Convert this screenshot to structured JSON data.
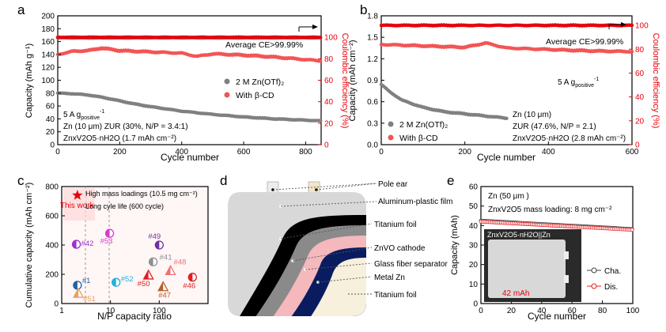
{
  "chart_data": [
    {
      "panel": "a",
      "type": "scatter",
      "title": "",
      "xlabel": "Cycle number",
      "ylabel": "Capacity (mAh g⁻¹)",
      "y2label": "Coulombic efficiency (%)",
      "xlim": [
        0,
        850
      ],
      "ylim": [
        0,
        200
      ],
      "y2lim": [
        0,
        120
      ],
      "xticks": [
        0,
        200,
        400,
        600,
        800
      ],
      "yticks": [
        0,
        20,
        40,
        60,
        80,
        100,
        120,
        140,
        160,
        180,
        200
      ],
      "y2ticks": [
        0,
        20,
        40,
        60,
        80,
        100
      ],
      "series": [
        {
          "name": "2 M Zn(OTf)2",
          "color": "#808080",
          "axis": "left",
          "x": [
            0,
            50,
            100,
            150,
            200,
            250,
            300,
            400,
            500,
            600,
            700,
            800,
            850
          ],
          "values": [
            80,
            79,
            77,
            73,
            68,
            63,
            59,
            52,
            47,
            43,
            40,
            38,
            37
          ]
        },
        {
          "name": "With β-CD",
          "color": "#f25555",
          "axis": "left",
          "x": [
            0,
            50,
            100,
            140,
            200,
            300,
            400,
            450,
            500,
            600,
            700,
            800,
            850
          ],
          "values": [
            140,
            145,
            146,
            150,
            146,
            144,
            142,
            137,
            141,
            139,
            136,
            132,
            130
          ]
        },
        {
          "name": "CE (2 M Zn(OTf)2)",
          "color": "#808080",
          "axis": "right",
          "x": [
            0,
            850
          ],
          "values": [
            99.5,
            99.5
          ]
        },
        {
          "name": "CE (With β-CD)",
          "color": "#e8000b",
          "axis": "right",
          "x": [
            0,
            850
          ],
          "values": [
            100,
            100
          ]
        }
      ],
      "legend": [
        "2 M Zn(OTf)₂",
        "With β-CD"
      ],
      "annotations": [
        "Average CE>99.99%",
        "5 A g",
        "positive",
        "-1",
        "Zn (10 μm)  ZUR (30%, N/P = 3.4:1)",
        "ZnxV2O5·nH2O (1.7 mAh cm⁻²)"
      ]
    },
    {
      "panel": "b",
      "type": "scatter",
      "title": "",
      "xlabel": "Cycle number",
      "ylabel": "Capacity (mAh cm⁻²)",
      "y2label": "Coulombic efficiency (%)",
      "xlim": [
        0,
        600
      ],
      "ylim": [
        0,
        1.8
      ],
      "y2lim": [
        0,
        108
      ],
      "xticks": [
        0,
        200,
        400,
        600
      ],
      "yticks": [
        0.0,
        0.3,
        0.6,
        0.9,
        1.2,
        1.5,
        1.8
      ],
      "y2ticks": [
        0,
        20,
        40,
        60,
        80,
        100
      ],
      "series": [
        {
          "name": "2 M Zn(OTf)2",
          "color": "#808080",
          "axis": "left",
          "x": [
            0,
            20,
            50,
            100,
            150,
            200,
            250,
            300
          ],
          "values": [
            0.84,
            0.74,
            0.62,
            0.52,
            0.46,
            0.43,
            0.4,
            0.37
          ]
        },
        {
          "name": "With β-CD",
          "color": "#f25555",
          "axis": "left",
          "x": [
            0,
            100,
            200,
            250,
            300,
            400,
            500,
            600
          ],
          "values": [
            1.4,
            1.38,
            1.36,
            1.42,
            1.35,
            1.33,
            1.31,
            1.3
          ]
        },
        {
          "name": "CE (With β-CD)",
          "color": "#e8000b",
          "axis": "right",
          "x": [
            0,
            600
          ],
          "values": [
            100,
            100
          ]
        }
      ],
      "legend": [
        "2 M Zn(OTf)₂",
        "With β-CD"
      ],
      "annotations": [
        "Average CE>99.99%",
        "5 A g",
        "positive",
        "-1",
        "Zn (10 μm)",
        "ZUR (47.6%, N/P = 2.1)",
        "ZnxV2O5·nH2O (2.8 mAh cm⁻²)"
      ]
    },
    {
      "panel": "c",
      "type": "scatter",
      "title": "",
      "xlabel": "N/P capacity ratio",
      "ylabel": "Cumulative capacity (mAh cm⁻²)",
      "xscale": "log",
      "xlim": [
        1,
        1000
      ],
      "ylim": [
        0,
        800
      ],
      "xticks": [
        1,
        10,
        100
      ],
      "yticks": [
        0,
        200,
        400,
        600,
        800
      ],
      "points": [
        {
          "label": "This work",
          "x": 2.1,
          "y": 740,
          "color": "#e8000b",
          "marker": "star"
        },
        {
          "label": "#42",
          "x": 2.0,
          "y": 405,
          "color": "#9b30d0",
          "marker": "half-circle"
        },
        {
          "label": "#53",
          "x": 9.6,
          "y": 480,
          "color": "#d63cd0",
          "marker": "half-circle"
        },
        {
          "label": "#49",
          "x": 100,
          "y": 400,
          "color": "#7030a0",
          "marker": "half-circle"
        },
        {
          "label": "#41",
          "x": 75,
          "y": 285,
          "color": "#909090",
          "marker": "half-circle"
        },
        {
          "label": "#48",
          "x": 170,
          "y": 225,
          "color": "#f07070",
          "marker": "half-triangle"
        },
        {
          "label": "#1",
          "x": 2.1,
          "y": 125,
          "color": "#1f5fa8",
          "marker": "half-circle"
        },
        {
          "label": "#51",
          "x": 2.2,
          "y": 70,
          "color": "#e8a060",
          "marker": "half-triangle"
        },
        {
          "label": "#52",
          "x": 13,
          "y": 145,
          "color": "#20b0e0",
          "marker": "half-circle"
        },
        {
          "label": "#50",
          "x": 60,
          "y": 195,
          "color": "#e02020",
          "marker": "half-triangle"
        },
        {
          "label": "#47",
          "x": 120,
          "y": 115,
          "color": "#b8602a",
          "marker": "half-triangle"
        },
        {
          "label": "#46",
          "x": 480,
          "y": 180,
          "color": "#e02020",
          "marker": "half-circle"
        }
      ],
      "annotations": [
        "High mass loadings (10.5 mg cm⁻²)",
        "Long cyle life (600 cycle)"
      ]
    },
    {
      "panel": "e",
      "type": "scatter",
      "title": "",
      "xlabel": "Cycle number",
      "ylabel": "Capacity (mAh)",
      "xlim": [
        0,
        100
      ],
      "ylim": [
        0,
        60
      ],
      "xticks": [
        0,
        20,
        40,
        60,
        80,
        100
      ],
      "yticks": [
        0,
        10,
        20,
        30,
        40,
        50,
        60
      ],
      "series": [
        {
          "name": "Cha.",
          "color": "#404040",
          "x": [
            0,
            100
          ],
          "values": [
            42.5,
            38.2
          ]
        },
        {
          "name": "Dis.",
          "color": "#e02020",
          "x": [
            0,
            100
          ],
          "values": [
            42.0,
            37.8
          ]
        }
      ],
      "legend": [
        "Cha.",
        "Dis."
      ],
      "annotations": [
        "Zn (50 μm )",
        "ZnxV2O5 mass loading: 8 mg cm⁻²",
        "ZnxV2O5·nH2O||Zn",
        "42 mAh"
      ]
    }
  ],
  "panel_labels": [
    "a",
    "b",
    "c",
    "d",
    "e"
  ],
  "diagram_d": {
    "labels": [
      "Pole ear",
      "Aluminum-plastic film",
      "Titanium foil",
      "ZnVO cathode",
      "Glass fiber separator",
      "Metal Zn",
      "Titanium foil"
    ]
  }
}
